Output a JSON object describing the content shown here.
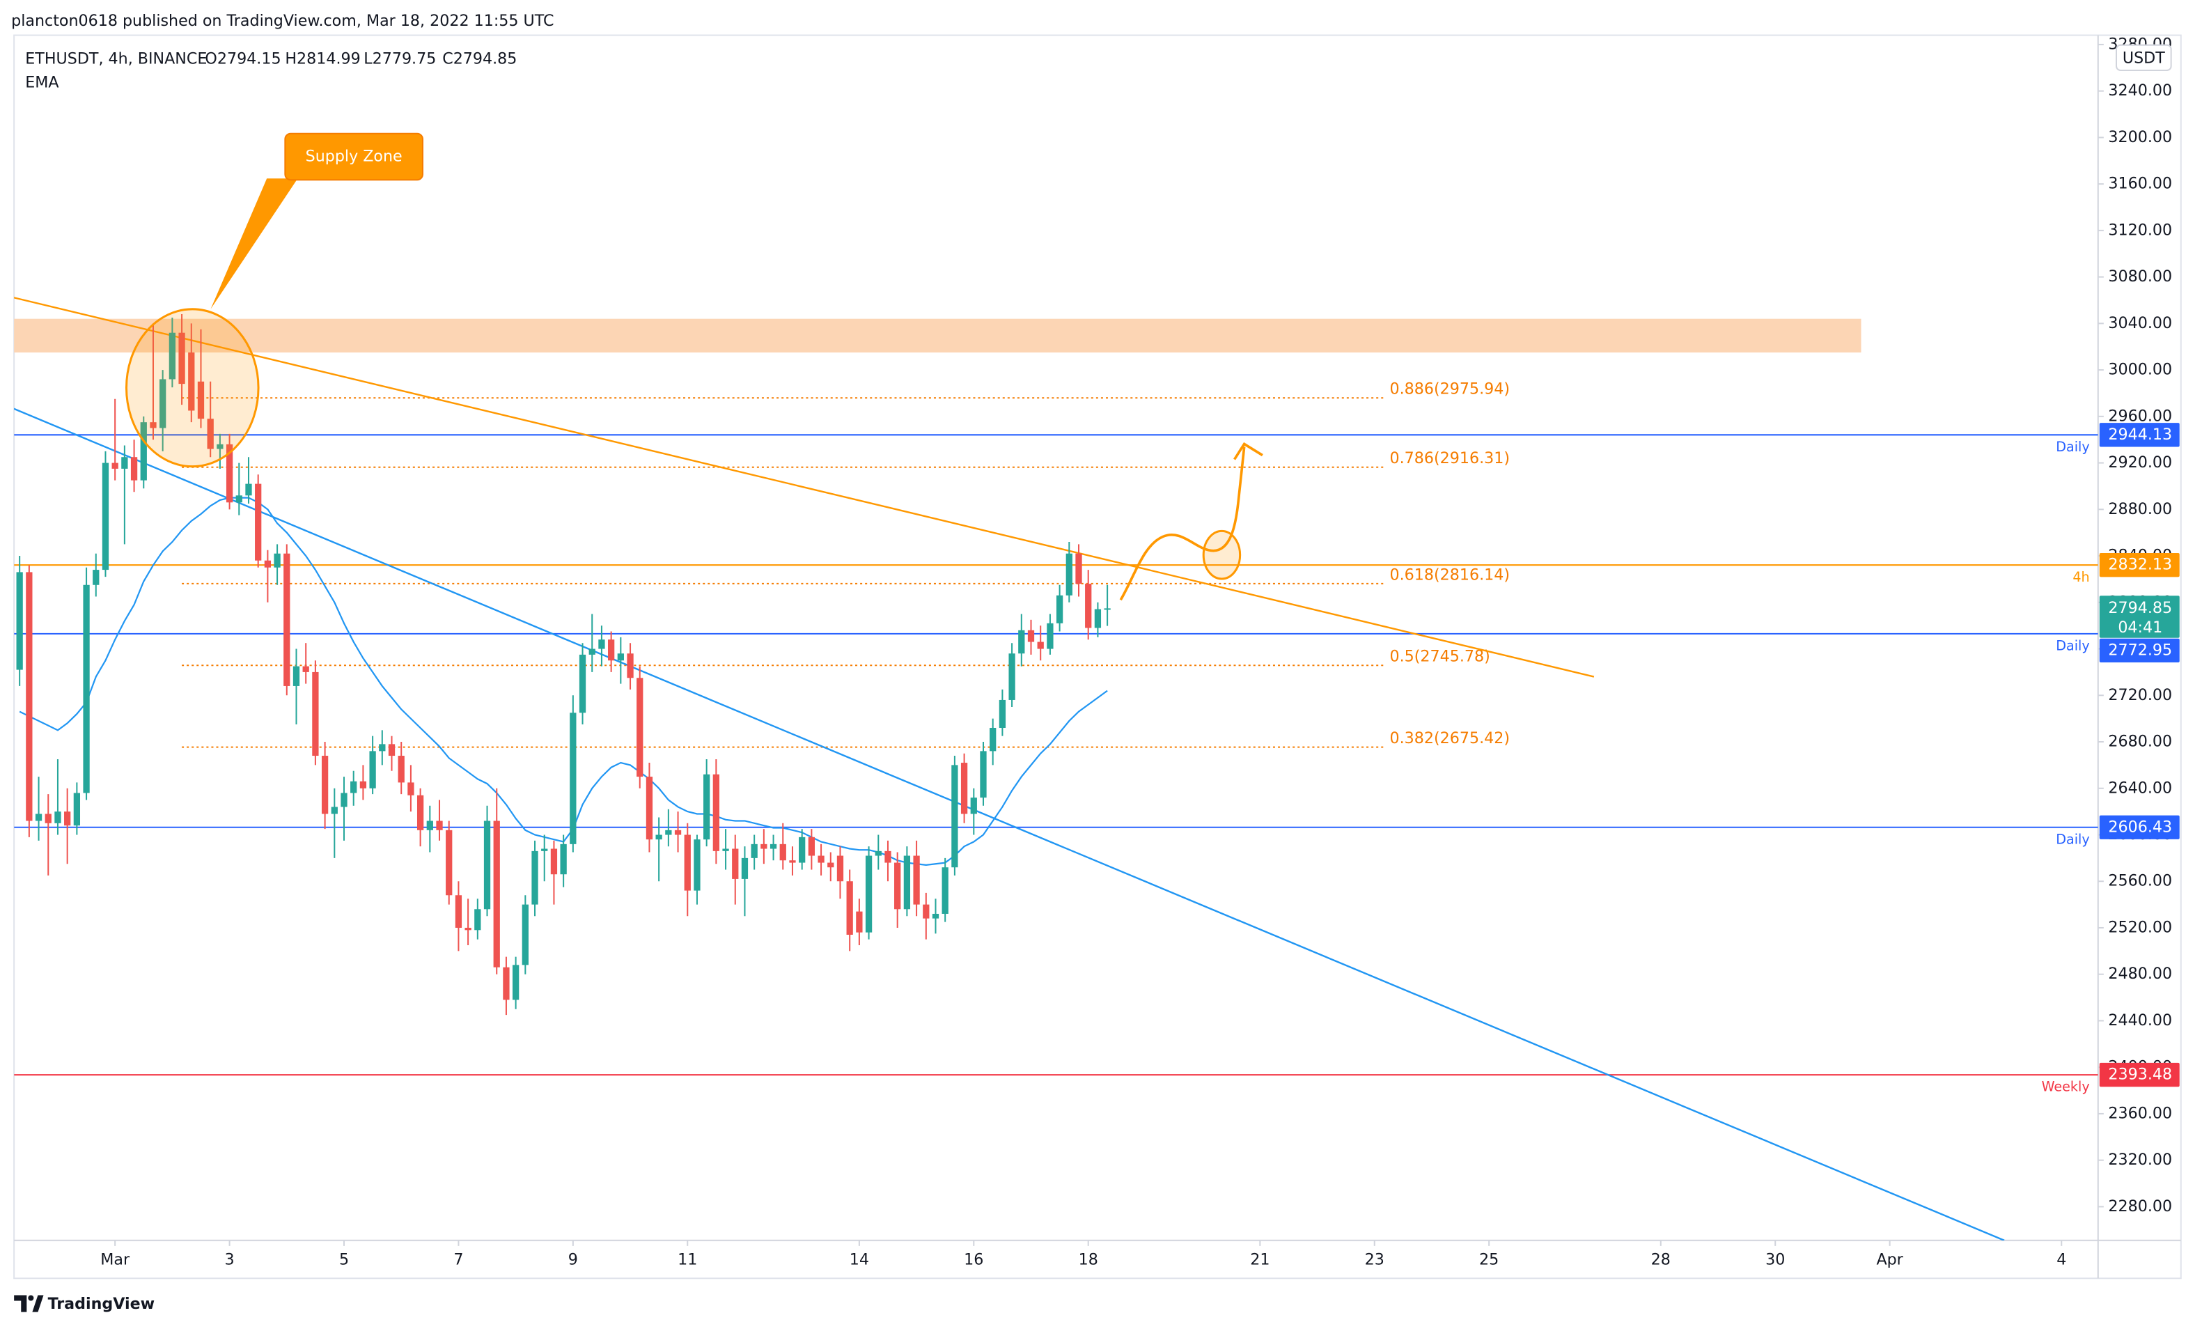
{
  "header": {
    "published": "plancton0618 published on TradingView.com, Mar 18, 2022 11:55 UTC"
  },
  "footer": {
    "brand": "TradingView"
  },
  "chart_data": {
    "type": "candlestick",
    "legend": [
      "ETHUSDT, 4h, BINANCE",
      "O2794.15",
      "H2814.99",
      "L2779.75",
      "C2794.85"
    ],
    "indicator": "EMA",
    "currency": "USDT",
    "up_color": "#26a69a",
    "down_color": "#ef5350",
    "ema_color": "#2196f3",
    "grid": false,
    "xlim": [
      "2022-02-27 05:40",
      "2022-04-04 15:20"
    ],
    "xticks": [
      {
        "value": "2022-03-01 00:00",
        "label": "Mar"
      },
      {
        "value": "2022-03-03 00:00",
        "label": "3"
      },
      {
        "value": "2022-03-05 00:00",
        "label": "5"
      },
      {
        "value": "2022-03-07 00:00",
        "label": "7"
      },
      {
        "value": "2022-03-09 00:00",
        "label": "9"
      },
      {
        "value": "2022-03-11 00:00",
        "label": "11"
      },
      {
        "value": "2022-03-14 00:00",
        "label": "14"
      },
      {
        "value": "2022-03-16 00:00",
        "label": "16"
      },
      {
        "value": "2022-03-18 00:00",
        "label": "18"
      },
      {
        "value": "2022-03-21 00:00",
        "label": "21"
      },
      {
        "value": "2022-03-23 00:00",
        "label": "23"
      },
      {
        "value": "2022-03-25 00:00",
        "label": "25"
      },
      {
        "value": "2022-03-28 00:00",
        "label": "28"
      },
      {
        "value": "2022-03-30 00:00",
        "label": "30"
      },
      {
        "value": "2022-04-01 00:00",
        "label": "Apr"
      },
      {
        "value": "2022-04-04 00:00",
        "label": "4"
      }
    ],
    "ylim": [
      2251,
      3288
    ],
    "yticks": [
      {
        "value": 2280,
        "label": "2280.00"
      },
      {
        "value": 2320,
        "label": "2320.00"
      },
      {
        "value": 2360,
        "label": "2360.00"
      },
      {
        "value": 2400,
        "label": "2400.00"
      },
      {
        "value": 2440,
        "label": "2440.00"
      },
      {
        "value": 2480,
        "label": "2480.00"
      },
      {
        "value": 2520,
        "label": "2520.00"
      },
      {
        "value": 2560,
        "label": "2560.00"
      },
      {
        "value": 2600,
        "label": "2600.00"
      },
      {
        "value": 2640,
        "label": "2640.00"
      },
      {
        "value": 2680,
        "label": "2680.00"
      },
      {
        "value": 2720,
        "label": "2720.00"
      },
      {
        "value": 2760,
        "label": "2760.00"
      },
      {
        "value": 2800,
        "label": "2800.00"
      },
      {
        "value": 2840,
        "label": "2840.00"
      },
      {
        "value": 2880,
        "label": "2880.00"
      },
      {
        "value": 2920,
        "label": "2920.00"
      },
      {
        "value": 2960,
        "label": "2960.00"
      },
      {
        "value": 3000,
        "label": "3000.00"
      },
      {
        "value": 3040,
        "label": "3040.00"
      },
      {
        "value": 3080,
        "label": "3080.00"
      },
      {
        "value": 3120,
        "label": "3120.00"
      },
      {
        "value": 3160,
        "label": "3160.00"
      },
      {
        "value": 3200,
        "label": "3200.00"
      },
      {
        "value": 3240,
        "label": "3240.00"
      },
      {
        "value": 3280,
        "label": "3280.00"
      }
    ],
    "x": [
      "2022-02-27 08:00",
      "2022-02-27 12:00",
      "2022-02-27 16:00",
      "2022-02-27 20:00",
      "2022-02-28 00:00",
      "2022-02-28 04:00",
      "2022-02-28 08:00",
      "2022-02-28 12:00",
      "2022-02-28 16:00",
      "2022-02-28 20:00",
      "2022-03-01 00:00",
      "2022-03-01 04:00",
      "2022-03-01 08:00",
      "2022-03-01 12:00",
      "2022-03-01 16:00",
      "2022-03-01 20:00",
      "2022-03-02 00:00",
      "2022-03-02 04:00",
      "2022-03-02 08:00",
      "2022-03-02 12:00",
      "2022-03-02 16:00",
      "2022-03-02 20:00",
      "2022-03-03 00:00",
      "2022-03-03 04:00",
      "2022-03-03 08:00",
      "2022-03-03 12:00",
      "2022-03-03 16:00",
      "2022-03-03 20:00",
      "2022-03-04 00:00",
      "2022-03-04 04:00",
      "2022-03-04 08:00",
      "2022-03-04 12:00",
      "2022-03-04 16:00",
      "2022-03-04 20:00",
      "2022-03-05 00:00",
      "2022-03-05 04:00",
      "2022-03-05 08:00",
      "2022-03-05 12:00",
      "2022-03-05 16:00",
      "2022-03-05 20:00",
      "2022-03-06 00:00",
      "2022-03-06 04:00",
      "2022-03-06 08:00",
      "2022-03-06 12:00",
      "2022-03-06 16:00",
      "2022-03-06 20:00",
      "2022-03-07 00:00",
      "2022-03-07 04:00",
      "2022-03-07 08:00",
      "2022-03-07 12:00",
      "2022-03-07 16:00",
      "2022-03-07 20:00",
      "2022-03-08 00:00",
      "2022-03-08 04:00",
      "2022-03-08 08:00",
      "2022-03-08 12:00",
      "2022-03-08 16:00",
      "2022-03-08 20:00",
      "2022-03-09 00:00",
      "2022-03-09 04:00",
      "2022-03-09 08:00",
      "2022-03-09 12:00",
      "2022-03-09 16:00",
      "2022-03-09 20:00",
      "2022-03-10 00:00",
      "2022-03-10 04:00",
      "2022-03-10 08:00",
      "2022-03-10 12:00",
      "2022-03-10 16:00",
      "2022-03-10 20:00",
      "2022-03-11 00:00",
      "2022-03-11 04:00",
      "2022-03-11 08:00",
      "2022-03-11 12:00",
      "2022-03-11 16:00",
      "2022-03-11 20:00",
      "2022-03-12 00:00",
      "2022-03-12 04:00",
      "2022-03-12 08:00",
      "2022-03-12 12:00",
      "2022-03-12 16:00",
      "2022-03-12 20:00",
      "2022-03-13 00:00",
      "2022-03-13 04:00",
      "2022-03-13 08:00",
      "2022-03-13 12:00",
      "2022-03-13 16:00",
      "2022-03-13 20:00",
      "2022-03-14 00:00",
      "2022-03-14 04:00",
      "2022-03-14 08:00",
      "2022-03-14 12:00",
      "2022-03-14 16:00",
      "2022-03-14 20:00",
      "2022-03-15 00:00",
      "2022-03-15 04:00",
      "2022-03-15 08:00",
      "2022-03-15 12:00",
      "2022-03-15 16:00",
      "2022-03-15 20:00",
      "2022-03-16 00:00",
      "2022-03-16 04:00",
      "2022-03-16 08:00",
      "2022-03-16 12:00",
      "2022-03-16 16:00",
      "2022-03-16 20:00",
      "2022-03-17 00:00",
      "2022-03-17 04:00",
      "2022-03-17 08:00",
      "2022-03-17 12:00",
      "2022-03-17 16:00",
      "2022-03-17 20:00",
      "2022-03-18 00:00",
      "2022-03-18 04:00",
      "2022-03-18 08:00"
    ],
    "ohlc": [
      [
        2742,
        2840,
        2728,
        2826
      ],
      [
        2826,
        2832,
        2598,
        2612
      ],
      [
        2612,
        2650,
        2595,
        2618
      ],
      [
        2618,
        2635,
        2565,
        2610
      ],
      [
        2610,
        2665,
        2600,
        2620
      ],
      [
        2620,
        2640,
        2575,
        2608
      ],
      [
        2608,
        2645,
        2600,
        2636
      ],
      [
        2636,
        2830,
        2630,
        2815
      ],
      [
        2815,
        2842,
        2805,
        2828
      ],
      [
        2828,
        2930,
        2822,
        2920
      ],
      [
        2920,
        2975,
        2905,
        2915
      ],
      [
        2915,
        2935,
        2850,
        2925
      ],
      [
        2925,
        2940,
        2895,
        2905
      ],
      [
        2905,
        2960,
        2898,
        2955
      ],
      [
        2955,
        3040,
        2940,
        2950
      ],
      [
        2950,
        3000,
        2930,
        2992
      ],
      [
        2992,
        3045,
        2985,
        3032
      ],
      [
        3032,
        3048,
        2970,
        2988
      ],
      [
        3015,
        3040,
        2955,
        2965
      ],
      [
        2990,
        3035,
        2950,
        2958
      ],
      [
        2958,
        2990,
        2925,
        2932
      ],
      [
        2932,
        2945,
        2915,
        2936
      ],
      [
        2936,
        2945,
        2880,
        2886
      ],
      [
        2886,
        2920,
        2875,
        2892
      ],
      [
        2892,
        2925,
        2885,
        2902
      ],
      [
        2902,
        2910,
        2830,
        2836
      ],
      [
        2836,
        2845,
        2800,
        2830
      ],
      [
        2830,
        2850,
        2815,
        2842
      ],
      [
        2842,
        2850,
        2720,
        2728
      ],
      [
        2728,
        2760,
        2695,
        2745
      ],
      [
        2745,
        2765,
        2730,
        2740
      ],
      [
        2740,
        2750,
        2660,
        2668
      ],
      [
        2668,
        2680,
        2605,
        2618
      ],
      [
        2618,
        2640,
        2580,
        2624
      ],
      [
        2624,
        2650,
        2595,
        2636
      ],
      [
        2636,
        2655,
        2625,
        2646
      ],
      [
        2646,
        2660,
        2630,
        2640
      ],
      [
        2640,
        2685,
        2635,
        2672
      ],
      [
        2672,
        2690,
        2660,
        2678
      ],
      [
        2678,
        2685,
        2655,
        2668
      ],
      [
        2668,
        2680,
        2635,
        2645
      ],
      [
        2645,
        2660,
        2620,
        2634
      ],
      [
        2634,
        2640,
        2590,
        2604
      ],
      [
        2604,
        2625,
        2585,
        2612
      ],
      [
        2612,
        2630,
        2595,
        2604
      ],
      [
        2604,
        2612,
        2540,
        2548
      ],
      [
        2548,
        2560,
        2500,
        2520
      ],
      [
        2520,
        2545,
        2505,
        2518
      ],
      [
        2518,
        2545,
        2510,
        2536
      ],
      [
        2536,
        2625,
        2530,
        2612
      ],
      [
        2612,
        2640,
        2480,
        2486
      ],
      [
        2486,
        2495,
        2445,
        2458
      ],
      [
        2458,
        2495,
        2450,
        2488
      ],
      [
        2488,
        2548,
        2480,
        2540
      ],
      [
        2540,
        2595,
        2530,
        2586
      ],
      [
        2586,
        2600,
        2560,
        2588
      ],
      [
        2588,
        2595,
        2540,
        2566
      ],
      [
        2566,
        2600,
        2555,
        2592
      ],
      [
        2592,
        2720,
        2585,
        2705
      ],
      [
        2705,
        2765,
        2695,
        2755
      ],
      [
        2755,
        2790,
        2740,
        2760
      ],
      [
        2760,
        2780,
        2745,
        2768
      ],
      [
        2768,
        2775,
        2740,
        2750
      ],
      [
        2750,
        2770,
        2730,
        2756
      ],
      [
        2756,
        2765,
        2725,
        2735
      ],
      [
        2735,
        2745,
        2640,
        2650
      ],
      [
        2650,
        2662,
        2585,
        2596
      ],
      [
        2596,
        2615,
        2560,
        2600
      ],
      [
        2600,
        2622,
        2590,
        2604
      ],
      [
        2604,
        2620,
        2585,
        2600
      ],
      [
        2600,
        2610,
        2530,
        2552
      ],
      [
        2552,
        2600,
        2540,
        2596
      ],
      [
        2596,
        2665,
        2590,
        2652
      ],
      [
        2652,
        2665,
        2575,
        2586
      ],
      [
        2586,
        2605,
        2570,
        2588
      ],
      [
        2588,
        2600,
        2540,
        2562
      ],
      [
        2562,
        2590,
        2530,
        2580
      ],
      [
        2580,
        2600,
        2570,
        2592
      ],
      [
        2592,
        2605,
        2575,
        2588
      ],
      [
        2588,
        2600,
        2578,
        2592
      ],
      [
        2592,
        2610,
        2570,
        2578
      ],
      [
        2578,
        2590,
        2565,
        2576
      ],
      [
        2576,
        2605,
        2570,
        2598
      ],
      [
        2598,
        2605,
        2570,
        2582
      ],
      [
        2582,
        2592,
        2565,
        2576
      ],
      [
        2576,
        2585,
        2560,
        2572
      ],
      [
        2582,
        2590,
        2545,
        2560
      ],
      [
        2560,
        2570,
        2500,
        2514
      ],
      [
        2534,
        2545,
        2505,
        2516
      ],
      [
        2516,
        2590,
        2510,
        2582
      ],
      [
        2582,
        2600,
        2570,
        2586
      ],
      [
        2586,
        2595,
        2560,
        2576
      ],
      [
        2576,
        2585,
        2520,
        2536
      ],
      [
        2536,
        2590,
        2530,
        2582
      ],
      [
        2582,
        2595,
        2530,
        2540
      ],
      [
        2540,
        2550,
        2510,
        2528
      ],
      [
        2528,
        2545,
        2515,
        2532
      ],
      [
        2532,
        2580,
        2525,
        2572
      ],
      [
        2572,
        2668,
        2565,
        2660
      ],
      [
        2662,
        2670,
        2610,
        2618
      ],
      [
        2618,
        2640,
        2600,
        2632
      ],
      [
        2632,
        2680,
        2625,
        2672
      ],
      [
        2672,
        2700,
        2660,
        2692
      ],
      [
        2692,
        2725,
        2685,
        2716
      ],
      [
        2716,
        2765,
        2710,
        2756
      ],
      [
        2756,
        2790,
        2745,
        2776
      ],
      [
        2776,
        2785,
        2755,
        2766
      ],
      [
        2766,
        2780,
        2750,
        2760
      ],
      [
        2760,
        2790,
        2755,
        2782
      ],
      [
        2782,
        2815,
        2775,
        2806
      ],
      [
        2806,
        2852,
        2800,
        2842
      ],
      [
        2842,
        2850,
        2805,
        2816
      ],
      [
        2816,
        2828,
        2768,
        2778
      ],
      [
        2778,
        2800,
        2770,
        2794.15
      ],
      [
        2794.15,
        2814.99,
        2779.75,
        2794.85
      ]
    ],
    "ema": [
      2706,
      2702,
      2698,
      2694,
      2690,
      2696,
      2704,
      2714,
      2736,
      2750,
      2768,
      2784,
      2798,
      2818,
      2832,
      2844,
      2852,
      2862,
      2870,
      2876,
      2883,
      2888,
      2890,
      2890,
      2890,
      2886,
      2880,
      2868,
      2860,
      2850,
      2840,
      2828,
      2814,
      2800,
      2782,
      2766,
      2752,
      2740,
      2728,
      2718,
      2708,
      2700,
      2692,
      2684,
      2676,
      2666,
      2660,
      2654,
      2648,
      2644,
      2636,
      2626,
      2614,
      2604,
      2600,
      2598,
      2596,
      2594,
      2605,
      2626,
      2640,
      2650,
      2658,
      2662,
      2660,
      2654,
      2648,
      2640,
      2630,
      2624,
      2620,
      2618,
      2618,
      2616,
      2613,
      2612,
      2612,
      2610,
      2608,
      2606,
      2606,
      2604,
      2602,
      2598,
      2594,
      2592,
      2590,
      2588,
      2587,
      2587,
      2585,
      2582,
      2578,
      2576,
      2575,
      2574,
      2575,
      2576,
      2582,
      2590,
      2594,
      2600,
      2612,
      2624,
      2638,
      2650,
      2660,
      2670,
      2678,
      2688,
      2698,
      2706,
      2712,
      2718,
      2724
    ],
    "zone": {
      "label": "Supply Zone",
      "top": 3044,
      "bottom": 3015,
      "start": "2022-02-27 00:00",
      "end": "2022-03-31 12:00",
      "color": "#fcd5b4"
    },
    "trendlines": [
      {
        "color": "#ff9800",
        "points": [
          [
            "2022-02-27 04:00",
            3063
          ],
          [
            "2022-03-26 20:00",
            2736
          ]
        ]
      },
      {
        "color": "#2196f3",
        "points": [
          [
            "2022-02-27 04:00",
            2968
          ],
          [
            "2022-04-03 00:00",
            2251
          ]
        ]
      }
    ],
    "fib": {
      "color": "#f57c00",
      "start": "2022-03-02 04:00",
      "end": "2022-03-23 04:00",
      "levels": [
        {
          "price": 2975.94,
          "label": "0.886(2975.94)"
        },
        {
          "price": 2916.31,
          "label": "0.786(2916.31)"
        },
        {
          "price": 2816.14,
          "label": "0.618(2816.14)"
        },
        {
          "price": 2745.78,
          "label": "0.5(2745.78)"
        },
        {
          "price": 2675.42,
          "label": "0.382(2675.42)"
        }
      ]
    },
    "levels": [
      {
        "value": 2944.13,
        "tag": "Daily",
        "color": "#2962ff"
      },
      {
        "value": 2832.13,
        "tag": "4h",
        "color": "#ff9800"
      },
      {
        "value": 2772.95,
        "tag": "Daily",
        "color": "#2962ff"
      },
      {
        "value": 2606.43,
        "tag": "Daily",
        "color": "#2962ff"
      },
      {
        "value": 2393.48,
        "tag": "Weekly",
        "color": "#f23645"
      }
    ],
    "last_price": {
      "value": 2794.85,
      "countdown": "04:41",
      "color": "#26a69a"
    }
  }
}
